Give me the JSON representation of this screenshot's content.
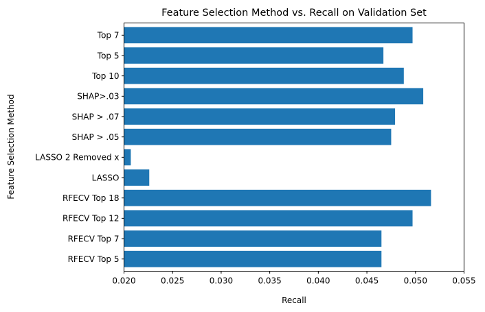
{
  "chart_data": {
    "type": "bar",
    "orientation": "horizontal",
    "title": "Feature Selection Method vs. Recall on Validation Set",
    "xlabel": "Recall",
    "ylabel": "Feature Selection Method",
    "xlim": [
      0.02,
      0.055
    ],
    "xticks": [
      "0.020",
      "0.025",
      "0.030",
      "0.035",
      "0.040",
      "0.045",
      "0.050",
      "0.055"
    ],
    "categories": [
      "RFECV Top 5",
      "RFECV Top 7",
      "RFECV Top 12",
      "RFECV Top 18",
      "LASSO",
      "LASSO 2 Removed x",
      "SHAP > .05",
      "SHAP > .07",
      "SHAP>.03",
      "Top 10",
      "Top 5",
      "Top 7"
    ],
    "values": [
      0.0465,
      0.0465,
      0.0497,
      0.0516,
      0.0226,
      0.0207,
      0.0475,
      0.0479,
      0.0508,
      0.0488,
      0.0467,
      0.0497
    ],
    "bar_color": "#1f77b4",
    "grid": false,
    "legend": "none"
  }
}
